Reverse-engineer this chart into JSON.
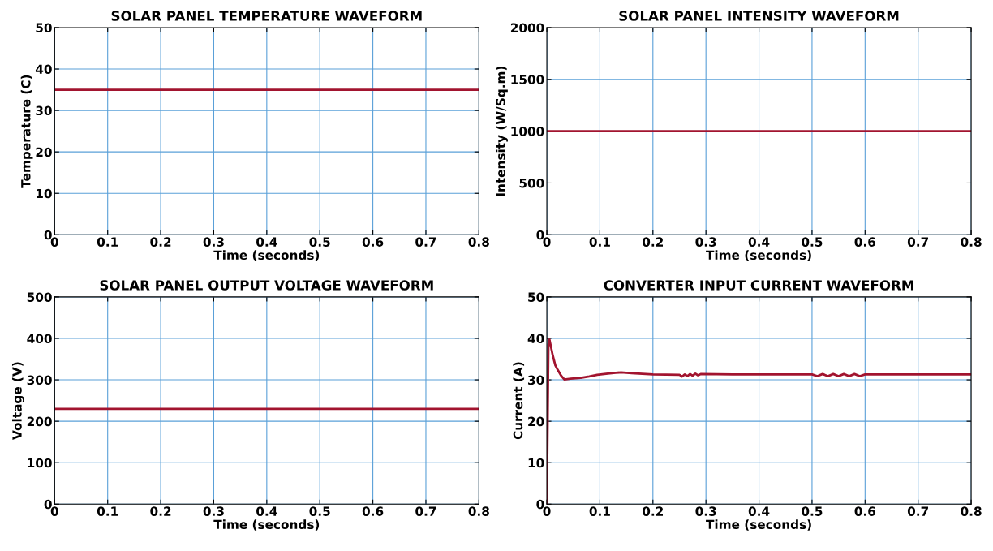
{
  "chart_data": [
    {
      "type": "line",
      "title": "SOLAR PANEL TEMPERATURE WAVEFORM",
      "xlabel": "Time (seconds)",
      "ylabel": "Temperature (C)",
      "grid": true,
      "xlim": [
        0,
        0.8
      ],
      "ylim": [
        0,
        50
      ],
      "xticks": [
        0,
        0.1,
        0.2,
        0.3,
        0.4,
        0.5,
        0.6,
        0.7,
        0.8
      ],
      "yticks": [
        0,
        10,
        20,
        30,
        40,
        50
      ],
      "series": [
        {
          "color": "#a2142f",
          "x": [
            0,
            0.8
          ],
          "values": [
            35,
            35
          ]
        }
      ]
    },
    {
      "type": "line",
      "title": "SOLAR PANEL INTENSITY WAVEFORM",
      "xlabel": "Time (seconds)",
      "ylabel": "Intensity (W/Sq.m)",
      "grid": true,
      "xlim": [
        0,
        0.8
      ],
      "ylim": [
        0,
        2000
      ],
      "xticks": [
        0,
        0.1,
        0.2,
        0.3,
        0.4,
        0.5,
        0.6,
        0.7,
        0.8
      ],
      "yticks": [
        0,
        500,
        1000,
        1500,
        2000
      ],
      "series": [
        {
          "color": "#a2142f",
          "x": [
            0,
            0.8
          ],
          "values": [
            1000,
            1000
          ]
        }
      ]
    },
    {
      "type": "line",
      "title": "SOLAR PANEL OUTPUT VOLTAGE WAVEFORM",
      "xlabel": "Time (seconds)",
      "ylabel": "Voltage (V)",
      "grid": true,
      "xlim": [
        0,
        0.8
      ],
      "ylim": [
        0,
        500
      ],
      "xticks": [
        0,
        0.1,
        0.2,
        0.3,
        0.4,
        0.5,
        0.6,
        0.7,
        0.8
      ],
      "yticks": [
        0,
        100,
        200,
        300,
        400,
        500
      ],
      "series": [
        {
          "color": "#a2142f",
          "x": [
            0,
            0.8
          ],
          "values": [
            230,
            230
          ]
        }
      ]
    },
    {
      "type": "line",
      "title": "CONVERTER INPUT CURRENT WAVEFORM",
      "xlabel": "Time (seconds)",
      "ylabel": "Current (A)",
      "grid": true,
      "xlim": [
        0,
        0.8
      ],
      "ylim": [
        0,
        50
      ],
      "xticks": [
        0,
        0.1,
        0.2,
        0.3,
        0.4,
        0.5,
        0.6,
        0.7,
        0.8
      ],
      "yticks": [
        0,
        10,
        20,
        30,
        40,
        50
      ],
      "series": [
        {
          "color": "#a2142f",
          "x": [
            0,
            0.003,
            0.005,
            0.011,
            0.016,
            0.021,
            0.027,
            0.033,
            0.045,
            0.064,
            0.08,
            0.095,
            0.115,
            0.13,
            0.14,
            0.16,
            0.2,
            0.25,
            0.255,
            0.26,
            0.265,
            0.27,
            0.275,
            0.28,
            0.285,
            0.29,
            0.35,
            0.4,
            0.5,
            0.51,
            0.52,
            0.53,
            0.54,
            0.55,
            0.56,
            0.57,
            0.58,
            0.59,
            0.6,
            0.8
          ],
          "values": [
            0,
            38.5,
            39.7,
            36,
            33.5,
            32.3,
            31,
            30.1,
            30.3,
            30.5,
            30.8,
            31.2,
            31.5,
            31.7,
            31.8,
            31.6,
            31.3,
            31.2,
            30.8,
            31.3,
            30.9,
            31.4,
            31,
            31.5,
            31.1,
            31.4,
            31.3,
            31.3,
            31.3,
            30.9,
            31.4,
            30.9,
            31.4,
            30.9,
            31.4,
            30.9,
            31.4,
            30.9,
            31.3,
            31.3
          ]
        }
      ]
    }
  ]
}
